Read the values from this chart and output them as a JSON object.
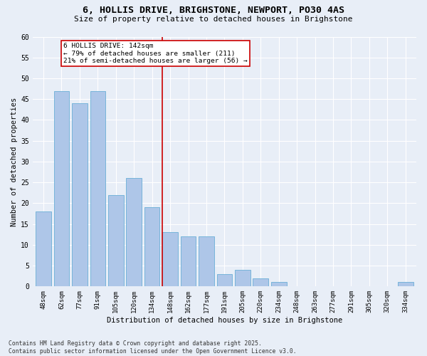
{
  "title1": "6, HOLLIS DRIVE, BRIGHSTONE, NEWPORT, PO30 4AS",
  "title2": "Size of property relative to detached houses in Brighstone",
  "xlabel": "Distribution of detached houses by size in Brighstone",
  "ylabel": "Number of detached properties",
  "categories": [
    "48sqm",
    "62sqm",
    "77sqm",
    "91sqm",
    "105sqm",
    "120sqm",
    "134sqm",
    "148sqm",
    "162sqm",
    "177sqm",
    "191sqm",
    "205sqm",
    "220sqm",
    "234sqm",
    "248sqm",
    "263sqm",
    "277sqm",
    "291sqm",
    "305sqm",
    "320sqm",
    "334sqm"
  ],
  "values": [
    18,
    47,
    44,
    47,
    22,
    26,
    19,
    13,
    12,
    12,
    3,
    4,
    2,
    1,
    0,
    0,
    0,
    0,
    0,
    0,
    1
  ],
  "bar_color": "#aec6e8",
  "bar_edge_color": "#6aaed6",
  "bg_color": "#e8eef7",
  "grid_color": "#ffffff",
  "annotation_line1": "6 HOLLIS DRIVE: 142sqm",
  "annotation_line2": "← 79% of detached houses are smaller (211)",
  "annotation_line3": "21% of semi-detached houses are larger (56) →",
  "annotation_box_color": "#ffffff",
  "annotation_box_edge": "#cc0000",
  "footnote": "Contains HM Land Registry data © Crown copyright and database right 2025.\nContains public sector information licensed under the Open Government Licence v3.0.",
  "ylim": [
    0,
    60
  ],
  "yticks": [
    0,
    5,
    10,
    15,
    20,
    25,
    30,
    35,
    40,
    45,
    50,
    55,
    60
  ]
}
